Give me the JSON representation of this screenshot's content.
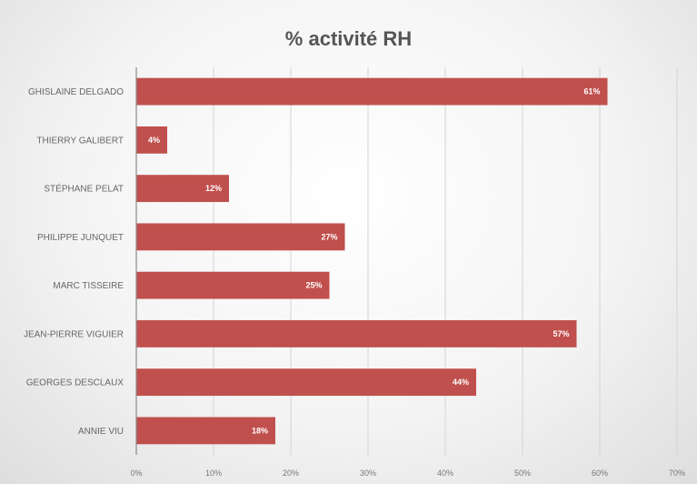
{
  "chart_data": {
    "type": "bar",
    "orientation": "horizontal",
    "title": "% activité RH",
    "categories": [
      "GHISLAINE DELGADO",
      "THIERRY GALIBERT",
      "STÉPHANE PELAT",
      "PHILIPPE JUNQUET",
      "MARC TISSEIRE",
      "JEAN-PIERRE VIGUIER",
      "GEORGES DESCLAUX",
      "ANNIE VIU"
    ],
    "values": [
      61,
      4,
      12,
      27,
      25,
      57,
      44,
      18
    ],
    "data_labels": [
      "61%",
      "4%",
      "12%",
      "27%",
      "25%",
      "57%",
      "44%",
      "18%"
    ],
    "x_ticks": [
      0,
      10,
      20,
      30,
      40,
      50,
      60,
      70
    ],
    "x_tick_labels": [
      "0%",
      "10%",
      "20%",
      "30%",
      "40%",
      "50%",
      "60%",
      "70%"
    ],
    "xlim": [
      0,
      70
    ],
    "xlabel": "",
    "ylabel": "",
    "grid": "vertical",
    "legend": "none",
    "bar_color": "#c0504d"
  }
}
